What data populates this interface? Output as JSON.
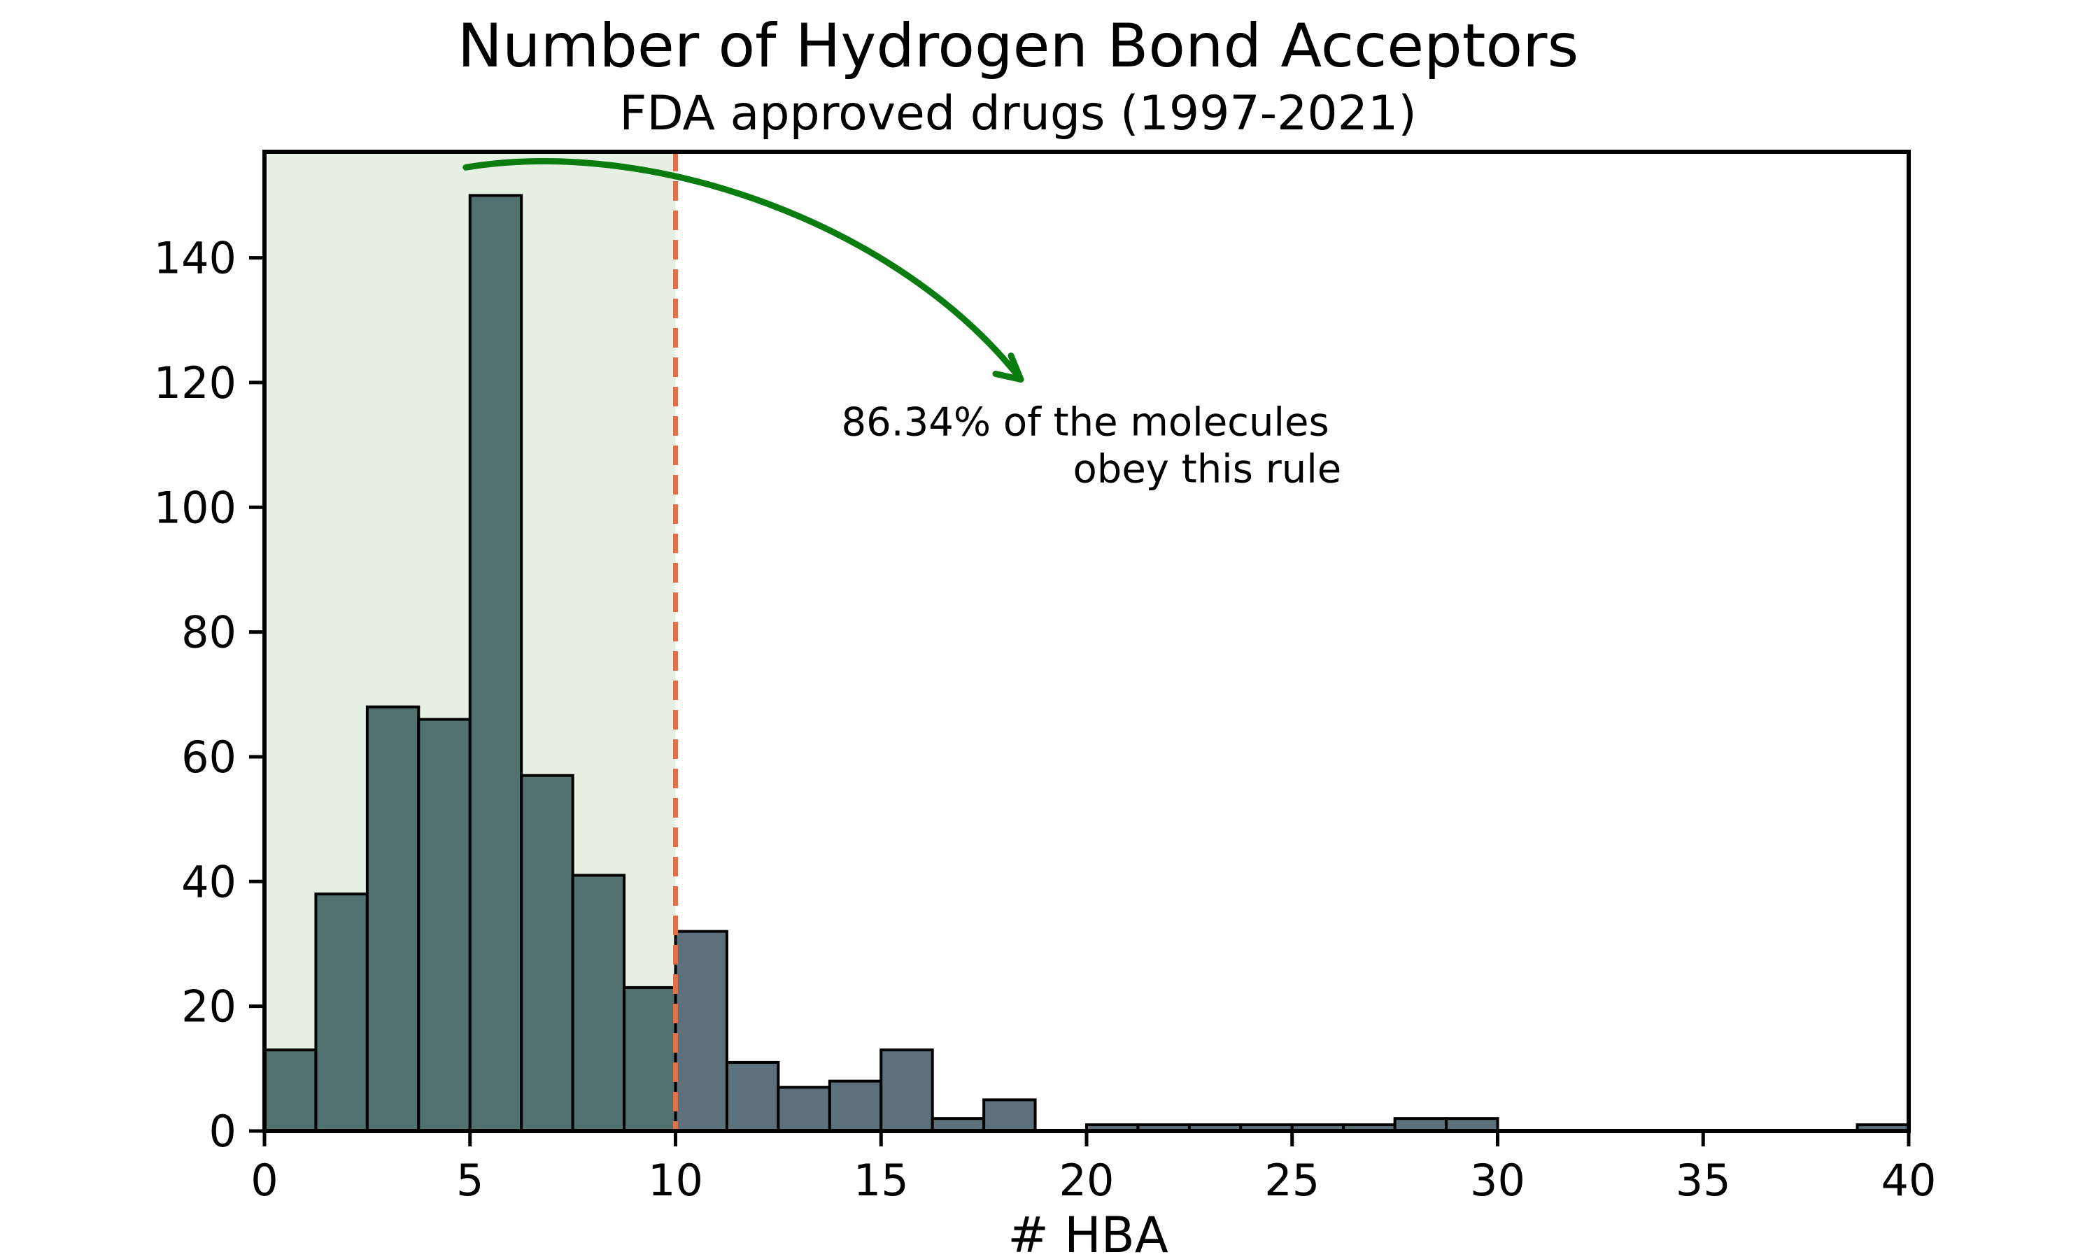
{
  "chart_data": {
    "type": "bar",
    "title": "Number of Hydrogen Bond Acceptors",
    "subtitle": "FDA approved drugs (1997-2021)",
    "xlabel": "# HBA",
    "ylabel": "",
    "xlim": [
      0,
      40
    ],
    "ylim": [
      0,
      157
    ],
    "x_ticks": [
      0,
      5,
      10,
      15,
      20,
      25,
      30,
      35,
      40
    ],
    "y_ticks": [
      0,
      20,
      40,
      60,
      80,
      100,
      120,
      140
    ],
    "bins": [
      {
        "x0": 0.0,
        "x1": 1.25,
        "count": 13
      },
      {
        "x0": 1.25,
        "x1": 2.5,
        "count": 38
      },
      {
        "x0": 2.5,
        "x1": 3.75,
        "count": 68
      },
      {
        "x0": 3.75,
        "x1": 5.0,
        "count": 66
      },
      {
        "x0": 5.0,
        "x1": 6.25,
        "count": 150
      },
      {
        "x0": 6.25,
        "x1": 7.5,
        "count": 57
      },
      {
        "x0": 7.5,
        "x1": 8.75,
        "count": 41
      },
      {
        "x0": 8.75,
        "x1": 10.0,
        "count": 23
      },
      {
        "x0": 10.0,
        "x1": 11.25,
        "count": 32
      },
      {
        "x0": 11.25,
        "x1": 12.5,
        "count": 11
      },
      {
        "x0": 12.5,
        "x1": 13.75,
        "count": 7
      },
      {
        "x0": 13.75,
        "x1": 15.0,
        "count": 8
      },
      {
        "x0": 15.0,
        "x1": 16.25,
        "count": 13
      },
      {
        "x0": 16.25,
        "x1": 17.5,
        "count": 2
      },
      {
        "x0": 17.5,
        "x1": 18.75,
        "count": 5
      },
      {
        "x0": 18.75,
        "x1": 20.0,
        "count": 0
      },
      {
        "x0": 20.0,
        "x1": 21.25,
        "count": 1
      },
      {
        "x0": 21.25,
        "x1": 22.5,
        "count": 1
      },
      {
        "x0": 22.5,
        "x1": 23.75,
        "count": 1
      },
      {
        "x0": 23.75,
        "x1": 25.0,
        "count": 1
      },
      {
        "x0": 25.0,
        "x1": 26.25,
        "count": 1
      },
      {
        "x0": 26.25,
        "x1": 27.5,
        "count": 1
      },
      {
        "x0": 27.5,
        "x1": 28.75,
        "count": 2
      },
      {
        "x0": 28.75,
        "x1": 30.0,
        "count": 2
      },
      {
        "x0": 38.75,
        "x1": 40.0,
        "count": 1
      }
    ],
    "threshold": 10,
    "annotation": {
      "lines": [
        "86.34% of the molecules",
        "obey this rule"
      ],
      "percent": 86.34
    },
    "grid": false,
    "legend": "none"
  },
  "colors": {
    "bar_within_rule": "#51716e",
    "bar_outside_rule": "#5d717c",
    "bar_edge": "#000000",
    "shaded_region": "#e6f1e4",
    "threshold_line": "#e0704a",
    "arrow": "#0a7c10",
    "axes": "#000000"
  }
}
